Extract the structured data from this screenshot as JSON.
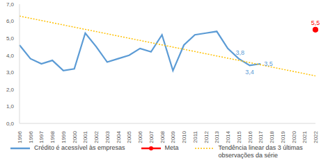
{
  "chart_data": {
    "type": "line",
    "categories": [
      "1996",
      "1996",
      "1997",
      "1998",
      "1999",
      "2000",
      "2001",
      "2002",
      "2003",
      "2004",
      "2005",
      "2006",
      "2007",
      "2008",
      "2009",
      "2010",
      "2011",
      "2012",
      "2013",
      "2014",
      "2015",
      "2016",
      "2017",
      "2018",
      "2019",
      "2020",
      "2021",
      "2022"
    ],
    "ylim": [
      0,
      7
    ],
    "yticks": [
      {
        "value": 0,
        "label": "0,0"
      },
      {
        "value": 1,
        "label": "1,0"
      },
      {
        "value": 2,
        "label": "2,0"
      },
      {
        "value": 3,
        "label": "3,0"
      },
      {
        "value": 4,
        "label": "4,0"
      },
      {
        "value": 5,
        "label": "5,0"
      },
      {
        "value": 6,
        "label": "6,0"
      },
      {
        "value": 7,
        "label": "7,0"
      }
    ],
    "grid": false,
    "legend": "bottom",
    "series": [
      {
        "name": "Crédito é acessível às empresas",
        "color": "#5b9bd5",
        "line_style": "solid",
        "marker": "none",
        "data_labels": true,
        "values": [
          4.6,
          3.8,
          3.5,
          3.7,
          3.1,
          3.2,
          5.3,
          4.5,
          3.6,
          3.8,
          4.0,
          4.4,
          4.2,
          5.2,
          3.1,
          4.6,
          5.2,
          5.3,
          5.4,
          4.4,
          3.8,
          3.4,
          3.5,
          null,
          null,
          null,
          null,
          null
        ],
        "value_labels": [
          null,
          null,
          null,
          null,
          null,
          null,
          null,
          null,
          null,
          null,
          null,
          null,
          null,
          null,
          null,
          null,
          null,
          null,
          null,
          null,
          "3,8",
          "3,4",
          "3,5",
          null,
          null,
          null,
          null,
          null
        ]
      },
      {
        "name": "Meta",
        "color": "#ff0000",
        "line_style": "solid",
        "marker": "circle",
        "data_labels": true,
        "values": [
          null,
          null,
          null,
          null,
          null,
          null,
          null,
          null,
          null,
          null,
          null,
          null,
          null,
          null,
          null,
          null,
          null,
          null,
          null,
          null,
          null,
          null,
          null,
          null,
          null,
          null,
          null,
          5.5
        ],
        "value_labels": [
          null,
          null,
          null,
          null,
          null,
          null,
          null,
          null,
          null,
          null,
          null,
          null,
          null,
          null,
          null,
          null,
          null,
          null,
          null,
          null,
          null,
          null,
          null,
          null,
          null,
          null,
          null,
          "5,5"
        ]
      },
      {
        "name": "Tendência linear das 3 últimas observações da série",
        "color": "#ffc000",
        "line_style": "dotted",
        "marker": "none",
        "values": [
          6.3,
          6.17,
          6.04,
          5.91,
          5.78,
          5.65,
          5.52,
          5.39,
          5.26,
          5.13,
          5.0,
          4.87,
          4.74,
          4.61,
          4.48,
          4.35,
          4.22,
          4.09,
          3.96,
          3.83,
          3.7,
          3.57,
          3.44,
          3.31,
          3.18,
          3.05,
          2.92,
          2.79
        ]
      }
    ]
  }
}
